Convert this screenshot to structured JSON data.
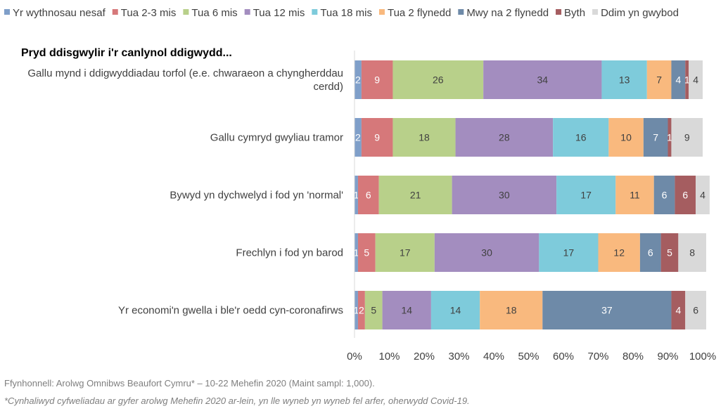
{
  "chart_data": {
    "type": "bar",
    "orientation": "horizontal",
    "stacked": "percent",
    "title": "Pryd ddisgwylir i'r canlynol ddigwydd...",
    "categories": [
      [
        "Gallu mynd i ddigwyddiadau torfol (e.e. chwaraeon a chyngherddau",
        "cerdd)"
      ],
      [
        "Gallu cymryd gwyliau tramor"
      ],
      [
        "Bywyd yn dychwelyd i fod yn 'normal'"
      ],
      [
        "Frechlyn i fod yn barod"
      ],
      [
        "Yr economi'n gwella i ble'r oedd cyn-coronafirws"
      ]
    ],
    "series": [
      {
        "name": "Yr wythnosau nesaf",
        "color": "#7f9fc9",
        "label_color": "#ffffff",
        "values": [
          2,
          2,
          1,
          1,
          1
        ]
      },
      {
        "name": "Tua 2-3 mis",
        "color": "#d6787a",
        "label_color": "#ffffff",
        "values": [
          9,
          9,
          6,
          5,
          2
        ]
      },
      {
        "name": "Tua 6 mis",
        "color": "#b8d08a",
        "label_color": "#404040",
        "values": [
          26,
          18,
          21,
          17,
          5
        ]
      },
      {
        "name": "Tua 12 mis",
        "color": "#a38dbf",
        "label_color": "#404040",
        "values": [
          34,
          28,
          30,
          30,
          14
        ]
      },
      {
        "name": "Tua 18 mis",
        "color": "#7ecbdb",
        "label_color": "#404040",
        "values": [
          13,
          16,
          17,
          17,
          14
        ]
      },
      {
        "name": "Tua 2 flynedd",
        "color": "#f9b97e",
        "label_color": "#404040",
        "values": [
          7,
          10,
          11,
          12,
          18
        ]
      },
      {
        "name": "Mwy na 2 flynedd",
        "color": "#6e8aa8",
        "label_color": "#ffffff",
        "values": [
          4,
          7,
          6,
          6,
          37
        ]
      },
      {
        "name": "Byth",
        "color": "#a55d60",
        "label_color": "#ffffff",
        "values": [
          1,
          1,
          6,
          5,
          4
        ]
      },
      {
        "name": "Ddim yn gwybod",
        "color": "#d9d9d9",
        "label_color": "#404040",
        "values": [
          4,
          9,
          4,
          8,
          6
        ]
      }
    ],
    "xlim": [
      0,
      100
    ],
    "xticks": [
      "0%",
      "10%",
      "20%",
      "30%",
      "40%",
      "50%",
      "60%",
      "70%",
      "80%",
      "90%",
      "100%"
    ],
    "legend_position": "top",
    "grid": false
  },
  "footnotes": {
    "source": "Ffynhonnell: Arolwg Omnibws Beaufort Cymru* – 10-22 Mehefin 2020 (Maint sampl: 1,000).",
    "note": "*Cynhaliwyd cyfweliadau ar gyfer arolwg Mehefin 2020 ar-lein, yn lle wyneb yn wyneb fel arfer, oherwydd Covid-19."
  }
}
